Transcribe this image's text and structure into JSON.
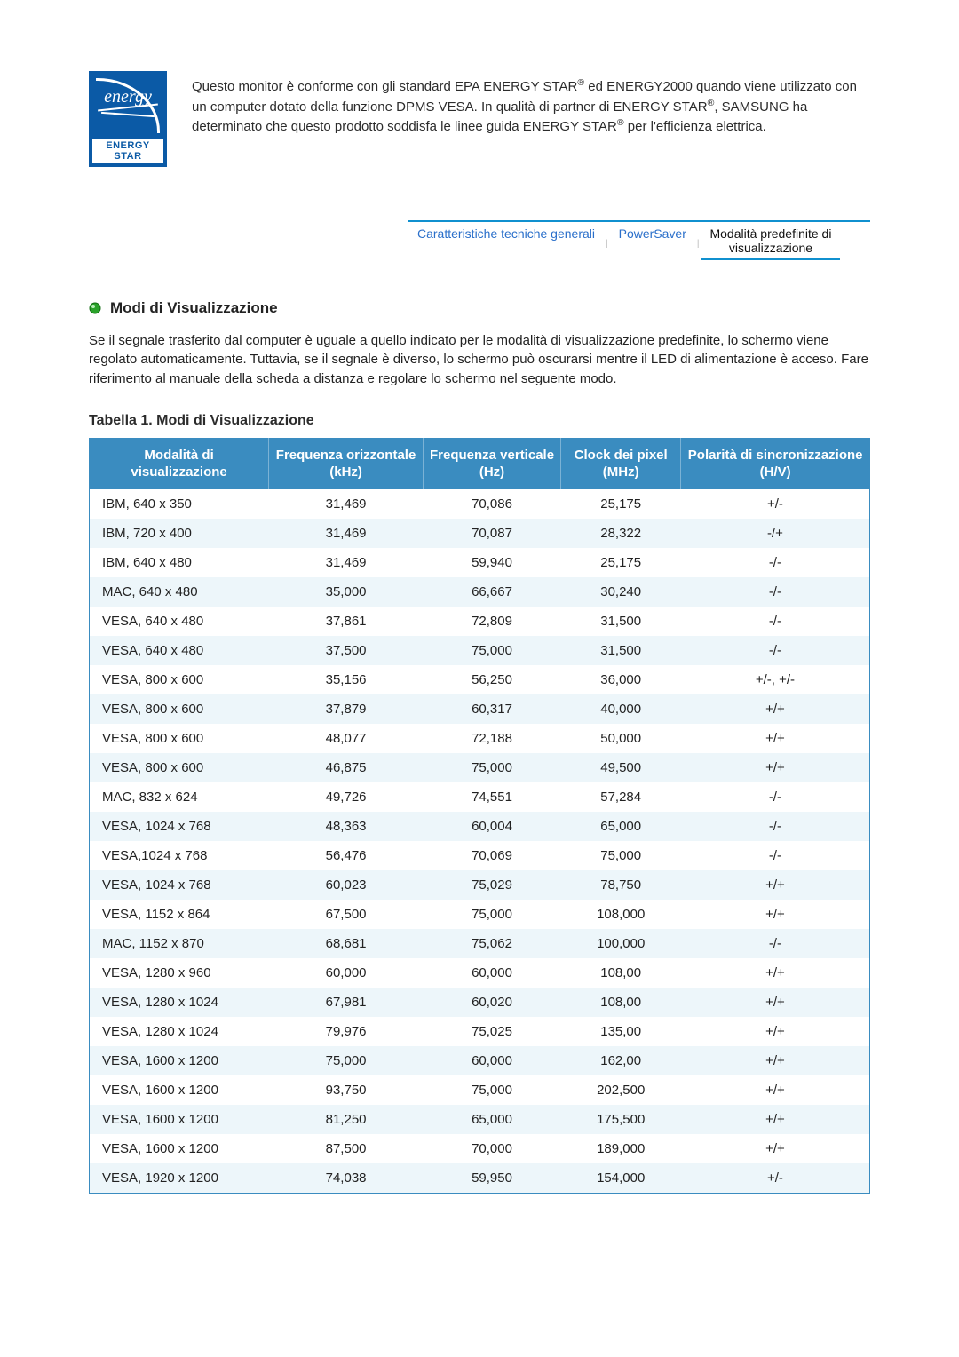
{
  "logo": {
    "script": "energy",
    "label": "ENERGY STAR",
    "bg_color": "#0b5aa6"
  },
  "intro": {
    "text_html": "Questo monitor è conforme con gli standard EPA ENERGY STAR® ed ENERGY2000 quando viene utilizzato con un computer dotato della funzione DPMS VESA. In qualità di partner di ENERGY STAR®, SAMSUNG ha determinato che questo prodotto soddisfa le linee guida ENERGY STAR® per l'efficienza elettrica."
  },
  "tabs": {
    "items": [
      {
        "label": "Caratteristiche tecniche generali",
        "active": false
      },
      {
        "label": "PowerSaver",
        "active": false
      },
      {
        "label_line1": "Modalità predefinite di",
        "label_line2": "visualizzazione",
        "active": true
      }
    ]
  },
  "section": {
    "heading": "Modi di Visualizzazione",
    "paragraph": "Se il segnale trasferito dal computer è uguale a quello indicato per le modalità di visualizzazione predefinite, lo schermo viene regolato automaticamente. Tuttavia, se il segnale è diverso, lo schermo può oscurarsi mentre il LED di alimentazione è acceso. Fare riferimento al manuale della scheda a distanza e regolare lo schermo nel seguente modo."
  },
  "table": {
    "title": "Tabella 1. Modi di Visualizzazione",
    "header_bg": "#3a8cc0",
    "row_alt_bg": "#edf6fa",
    "columns": [
      "Modalità di visualizzazione",
      "Frequenza orizzontale (kHz)",
      "Frequenza verticale (Hz)",
      "Clock dei pixel (MHz)",
      "Polarità di sincronizzazione (H/V)"
    ],
    "rows": [
      [
        "IBM, 640 x 350",
        "31,469",
        "70,086",
        "25,175",
        "+/-"
      ],
      [
        "IBM, 720 x 400",
        "31,469",
        "70,087",
        "28,322",
        "-/+"
      ],
      [
        "IBM, 640 x 480",
        "31,469",
        "59,940",
        "25,175",
        "-/-"
      ],
      [
        "MAC, 640 x 480",
        "35,000",
        "66,667",
        "30,240",
        "-/-"
      ],
      [
        "VESA, 640 x 480",
        "37,861",
        "72,809",
        "31,500",
        "-/-"
      ],
      [
        "VESA, 640 x 480",
        "37,500",
        "75,000",
        "31,500",
        "-/-"
      ],
      [
        "VESA, 800 x 600",
        "35,156",
        "56,250",
        "36,000",
        "+/-, +/-"
      ],
      [
        "VESA, 800 x 600",
        "37,879",
        "60,317",
        "40,000",
        "+/+"
      ],
      [
        "VESA, 800 x 600",
        "48,077",
        "72,188",
        "50,000",
        "+/+"
      ],
      [
        "VESA, 800 x 600",
        "46,875",
        "75,000",
        "49,500",
        "+/+"
      ],
      [
        "MAC, 832 x 624",
        "49,726",
        "74,551",
        "57,284",
        "-/-"
      ],
      [
        "VESA, 1024 x 768",
        "48,363",
        "60,004",
        "65,000",
        "-/-"
      ],
      [
        "VESA,1024 x 768",
        "56,476",
        "70,069",
        "75,000",
        "-/-"
      ],
      [
        "VESA, 1024 x 768",
        "60,023",
        "75,029",
        "78,750",
        "+/+"
      ],
      [
        "VESA, 1152 x 864",
        "67,500",
        "75,000",
        "108,000",
        "+/+"
      ],
      [
        "MAC, 1152 x 870",
        "68,681",
        "75,062",
        "100,000",
        "-/-"
      ],
      [
        "VESA, 1280 x 960",
        "60,000",
        "60,000",
        "108,00",
        "+/+"
      ],
      [
        "VESA, 1280 x 1024",
        "67,981",
        "60,020",
        "108,00",
        "+/+"
      ],
      [
        "VESA, 1280 x 1024",
        "79,976",
        "75,025",
        "135,00",
        "+/+"
      ],
      [
        "VESA, 1600 x 1200",
        "75,000",
        "60,000",
        "162,00",
        "+/+"
      ],
      [
        "VESA, 1600 x 1200",
        "93,750",
        "75,000",
        "202,500",
        "+/+"
      ],
      [
        "VESA, 1600 x 1200",
        "81,250",
        "65,000",
        "175,500",
        "+/+"
      ],
      [
        "VESA, 1600 x 1200",
        "87,500",
        "70,000",
        "189,000",
        "+/+"
      ],
      [
        "VESA, 1920 x 1200",
        "74,038",
        "59,950",
        "154,000",
        "+/-"
      ]
    ]
  }
}
